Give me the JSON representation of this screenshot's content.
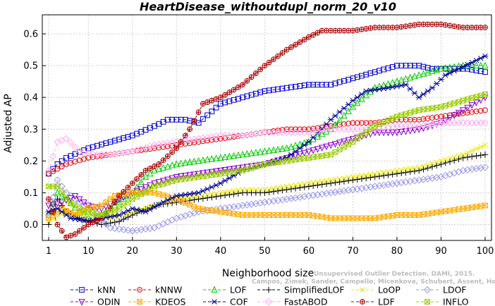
{
  "chart_data": {
    "type": "line",
    "title": "HeartDisease_withoutdupl_norm_20_v10",
    "xlabel": "Neighborhood size",
    "ylabel": "Adjusted AP",
    "xlim": [
      1,
      100
    ],
    "ylim": [
      -0.05,
      0.66
    ],
    "xticks": [
      1,
      10,
      20,
      30,
      40,
      50,
      60,
      70,
      80,
      90,
      100
    ],
    "yticks": [
      0.0,
      0.1,
      0.2,
      0.3,
      0.4,
      0.5,
      0.6
    ],
    "ytick_labels": [
      "0.0",
      "0.1",
      "0.2",
      "0.3",
      "0.4",
      "0.5",
      "0.6"
    ],
    "grid": true,
    "legend_position": "bottom",
    "credits": [
      "Unsupervised Outlier Detection. DAMI, 2015.",
      "Campos, Zimek, Sander, Campello, Micenkova, Schubert, Assent, Houle"
    ],
    "series": [
      {
        "name": "kNN",
        "color": "#0000cc",
        "marker": "square",
        "points": [
          [
            1,
            0.16
          ],
          [
            3,
            0.19
          ],
          [
            5,
            0.21
          ],
          [
            10,
            0.24
          ],
          [
            15,
            0.26
          ],
          [
            20,
            0.28
          ],
          [
            25,
            0.31
          ],
          [
            28,
            0.33
          ],
          [
            32,
            0.33
          ],
          [
            35,
            0.32
          ],
          [
            40,
            0.38
          ],
          [
            45,
            0.4
          ],
          [
            50,
            0.42
          ],
          [
            55,
            0.43
          ],
          [
            60,
            0.44
          ],
          [
            65,
            0.44
          ],
          [
            70,
            0.46
          ],
          [
            75,
            0.48
          ],
          [
            80,
            0.5
          ],
          [
            85,
            0.5
          ],
          [
            88,
            0.49
          ],
          [
            92,
            0.49
          ],
          [
            96,
            0.49
          ],
          [
            100,
            0.48
          ]
        ]
      },
      {
        "name": "kNNW",
        "color": "#dd0000",
        "marker": "circle",
        "points": [
          [
            1,
            0.16
          ],
          [
            5,
            0.19
          ],
          [
            10,
            0.21
          ],
          [
            15,
            0.22
          ],
          [
            20,
            0.23
          ],
          [
            25,
            0.24
          ],
          [
            30,
            0.25
          ],
          [
            35,
            0.26
          ],
          [
            40,
            0.27
          ],
          [
            45,
            0.28
          ],
          [
            50,
            0.29
          ],
          [
            55,
            0.3
          ],
          [
            60,
            0.3
          ],
          [
            65,
            0.31
          ],
          [
            70,
            0.32
          ],
          [
            75,
            0.32
          ],
          [
            80,
            0.33
          ],
          [
            85,
            0.33
          ],
          [
            90,
            0.34
          ],
          [
            95,
            0.35
          ],
          [
            100,
            0.36
          ]
        ]
      },
      {
        "name": "LOF",
        "color": "#00cc00",
        "marker": "triangle-up",
        "points": [
          [
            1,
            0.03
          ],
          [
            3,
            0.1
          ],
          [
            5,
            0.08
          ],
          [
            8,
            0.04
          ],
          [
            10,
            0.02
          ],
          [
            12,
            0.02
          ],
          [
            15,
            0.05
          ],
          [
            18,
            0.08
          ],
          [
            20,
            0.1
          ],
          [
            23,
            0.15
          ],
          [
            25,
            0.17
          ],
          [
            30,
            0.19
          ],
          [
            35,
            0.2
          ],
          [
            40,
            0.21
          ],
          [
            45,
            0.22
          ],
          [
            50,
            0.23
          ],
          [
            55,
            0.24
          ],
          [
            60,
            0.26
          ],
          [
            65,
            0.3
          ],
          [
            70,
            0.37
          ],
          [
            75,
            0.43
          ],
          [
            80,
            0.45
          ],
          [
            85,
            0.47
          ],
          [
            90,
            0.49
          ],
          [
            95,
            0.5
          ],
          [
            100,
            0.5
          ]
        ]
      },
      {
        "name": "SimplifiedLOF",
        "color": "#000000",
        "marker": "plus",
        "points": [
          [
            1,
            0.0
          ],
          [
            3,
            0.08
          ],
          [
            5,
            0.04
          ],
          [
            8,
            0.02
          ],
          [
            10,
            0.01
          ],
          [
            13,
            0.0
          ],
          [
            17,
            0.01
          ],
          [
            20,
            0.03
          ],
          [
            25,
            0.06
          ],
          [
            30,
            0.07
          ],
          [
            35,
            0.08
          ],
          [
            40,
            0.09
          ],
          [
            45,
            0.1
          ],
          [
            50,
            0.1
          ],
          [
            55,
            0.11
          ],
          [
            60,
            0.12
          ],
          [
            65,
            0.13
          ],
          [
            70,
            0.14
          ],
          [
            75,
            0.15
          ],
          [
            80,
            0.16
          ],
          [
            85,
            0.17
          ],
          [
            90,
            0.19
          ],
          [
            95,
            0.21
          ],
          [
            100,
            0.22
          ]
        ]
      },
      {
        "name": "LoOP",
        "color": "#e8e800",
        "marker": "x",
        "points": [
          [
            1,
            0.01
          ],
          [
            5,
            0.04
          ],
          [
            10,
            0.03
          ],
          [
            15,
            0.02
          ],
          [
            20,
            0.04
          ],
          [
            25,
            0.06
          ],
          [
            30,
            0.08
          ],
          [
            35,
            0.09
          ],
          [
            40,
            0.1
          ],
          [
            45,
            0.11
          ],
          [
            50,
            0.11
          ],
          [
            55,
            0.12
          ],
          [
            60,
            0.13
          ],
          [
            65,
            0.14
          ],
          [
            70,
            0.15
          ],
          [
            75,
            0.16
          ],
          [
            80,
            0.17
          ],
          [
            85,
            0.18
          ],
          [
            90,
            0.2
          ],
          [
            95,
            0.22
          ],
          [
            100,
            0.25
          ]
        ]
      },
      {
        "name": "LDOF",
        "color": "#9999ee",
        "marker": "diamond",
        "points": [
          [
            1,
            0.03
          ],
          [
            3,
            0.14
          ],
          [
            5,
            0.1
          ],
          [
            10,
            0.05
          ],
          [
            15,
            -0.01
          ],
          [
            20,
            -0.02
          ],
          [
            25,
            -0.01
          ],
          [
            30,
            0.02
          ],
          [
            35,
            0.04
          ],
          [
            40,
            0.05
          ],
          [
            45,
            0.06
          ],
          [
            50,
            0.07
          ],
          [
            55,
            0.08
          ],
          [
            60,
            0.09
          ],
          [
            65,
            0.1
          ],
          [
            70,
            0.11
          ],
          [
            75,
            0.12
          ],
          [
            80,
            0.13
          ],
          [
            85,
            0.14
          ],
          [
            90,
            0.15
          ],
          [
            95,
            0.17
          ],
          [
            100,
            0.18
          ]
        ]
      },
      {
        "name": "ODIN",
        "color": "#8800cc",
        "marker": "triangle-down",
        "points": [
          [
            1,
            0.06
          ],
          [
            4,
            0.07
          ],
          [
            7,
            0.09
          ],
          [
            10,
            0.06
          ],
          [
            13,
            0.05
          ],
          [
            17,
            0.08
          ],
          [
            20,
            0.1
          ],
          [
            25,
            0.13
          ],
          [
            30,
            0.15
          ],
          [
            35,
            0.16
          ],
          [
            40,
            0.17
          ],
          [
            45,
            0.18
          ],
          [
            50,
            0.19
          ],
          [
            55,
            0.21
          ],
          [
            60,
            0.23
          ],
          [
            65,
            0.25
          ],
          [
            70,
            0.27
          ],
          [
            75,
            0.29
          ],
          [
            80,
            0.29
          ],
          [
            85,
            0.3
          ],
          [
            90,
            0.32
          ],
          [
            95,
            0.36
          ],
          [
            100,
            0.4
          ]
        ]
      },
      {
        "name": "KDEOS",
        "color": "#ffaa00",
        "marker": "square-x",
        "points": [
          [
            1,
            0.02
          ],
          [
            4,
            0.05
          ],
          [
            7,
            0.03
          ],
          [
            10,
            0.05
          ],
          [
            13,
            0.06
          ],
          [
            16,
            0.09
          ],
          [
            20,
            0.1
          ],
          [
            25,
            0.1
          ],
          [
            30,
            0.08
          ],
          [
            35,
            0.05
          ],
          [
            40,
            0.04
          ],
          [
            45,
            0.03
          ],
          [
            50,
            0.03
          ],
          [
            55,
            0.03
          ],
          [
            60,
            0.03
          ],
          [
            65,
            0.02
          ],
          [
            70,
            0.02
          ],
          [
            75,
            0.02
          ],
          [
            80,
            0.03
          ],
          [
            85,
            0.03
          ],
          [
            90,
            0.04
          ],
          [
            95,
            0.05
          ],
          [
            100,
            0.06
          ]
        ]
      },
      {
        "name": "COF",
        "color": "#000099",
        "marker": "asterisk",
        "points": [
          [
            1,
            0.04
          ],
          [
            3,
            0.05
          ],
          [
            6,
            0.02
          ],
          [
            10,
            0.01
          ],
          [
            13,
            0.02
          ],
          [
            17,
            0.03
          ],
          [
            20,
            0.05
          ],
          [
            23,
            0.04
          ],
          [
            27,
            0.07
          ],
          [
            30,
            0.09
          ],
          [
            35,
            0.1
          ],
          [
            40,
            0.13
          ],
          [
            45,
            0.17
          ],
          [
            50,
            0.19
          ],
          [
            55,
            0.21
          ],
          [
            60,
            0.26
          ],
          [
            65,
            0.33
          ],
          [
            70,
            0.39
          ],
          [
            73,
            0.42
          ],
          [
            78,
            0.43
          ],
          [
            82,
            0.44
          ],
          [
            85,
            0.4
          ],
          [
            88,
            0.43
          ],
          [
            91,
            0.47
          ],
          [
            94,
            0.49
          ],
          [
            97,
            0.51
          ],
          [
            100,
            0.53
          ]
        ]
      },
      {
        "name": "FastABOD",
        "color": "#ffaaee",
        "marker": "diamond",
        "points": [
          [
            1,
            0.17
          ],
          [
            3,
            0.26
          ],
          [
            5,
            0.27
          ],
          [
            8,
            0.23
          ],
          [
            12,
            0.22
          ],
          [
            15,
            0.22
          ],
          [
            20,
            0.23
          ],
          [
            25,
            0.25
          ],
          [
            30,
            0.26
          ],
          [
            35,
            0.27
          ],
          [
            40,
            0.28
          ],
          [
            45,
            0.28
          ],
          [
            50,
            0.29
          ],
          [
            55,
            0.29
          ],
          [
            60,
            0.29
          ],
          [
            65,
            0.3
          ],
          [
            70,
            0.3
          ],
          [
            75,
            0.3
          ],
          [
            80,
            0.31
          ],
          [
            85,
            0.31
          ],
          [
            90,
            0.32
          ],
          [
            95,
            0.32
          ],
          [
            100,
            0.32
          ]
        ]
      },
      {
        "name": "LDF",
        "color": "#aa0000",
        "marker": "circle-plus",
        "points": [
          [
            1,
            0.08
          ],
          [
            3,
            0.0
          ],
          [
            5,
            -0.04
          ],
          [
            7,
            -0.03
          ],
          [
            10,
            0.0
          ],
          [
            13,
            0.02
          ],
          [
            15,
            0.05
          ],
          [
            17,
            0.09
          ],
          [
            20,
            0.13
          ],
          [
            23,
            0.17
          ],
          [
            26,
            0.19
          ],
          [
            30,
            0.24
          ],
          [
            33,
            0.3
          ],
          [
            36,
            0.38
          ],
          [
            40,
            0.4
          ],
          [
            45,
            0.44
          ],
          [
            50,
            0.5
          ],
          [
            55,
            0.55
          ],
          [
            60,
            0.59
          ],
          [
            63,
            0.61
          ],
          [
            70,
            0.61
          ],
          [
            75,
            0.62
          ],
          [
            80,
            0.62
          ],
          [
            85,
            0.63
          ],
          [
            90,
            0.63
          ],
          [
            95,
            0.62
          ],
          [
            100,
            0.62
          ]
        ]
      },
      {
        "name": "INFLO",
        "color": "#99cc00",
        "marker": "square-x",
        "points": [
          [
            1,
            0.12
          ],
          [
            3,
            0.12
          ],
          [
            5,
            0.08
          ],
          [
            8,
            0.05
          ],
          [
            10,
            0.04
          ],
          [
            13,
            0.03
          ],
          [
            17,
            0.05
          ],
          [
            20,
            0.08
          ],
          [
            25,
            0.12
          ],
          [
            30,
            0.14
          ],
          [
            35,
            0.15
          ],
          [
            40,
            0.16
          ],
          [
            45,
            0.17
          ],
          [
            50,
            0.19
          ],
          [
            55,
            0.2
          ],
          [
            60,
            0.21
          ],
          [
            65,
            0.22
          ],
          [
            70,
            0.26
          ],
          [
            75,
            0.31
          ],
          [
            80,
            0.34
          ],
          [
            85,
            0.36
          ],
          [
            90,
            0.37
          ],
          [
            95,
            0.39
          ],
          [
            100,
            0.41
          ]
        ]
      }
    ]
  }
}
